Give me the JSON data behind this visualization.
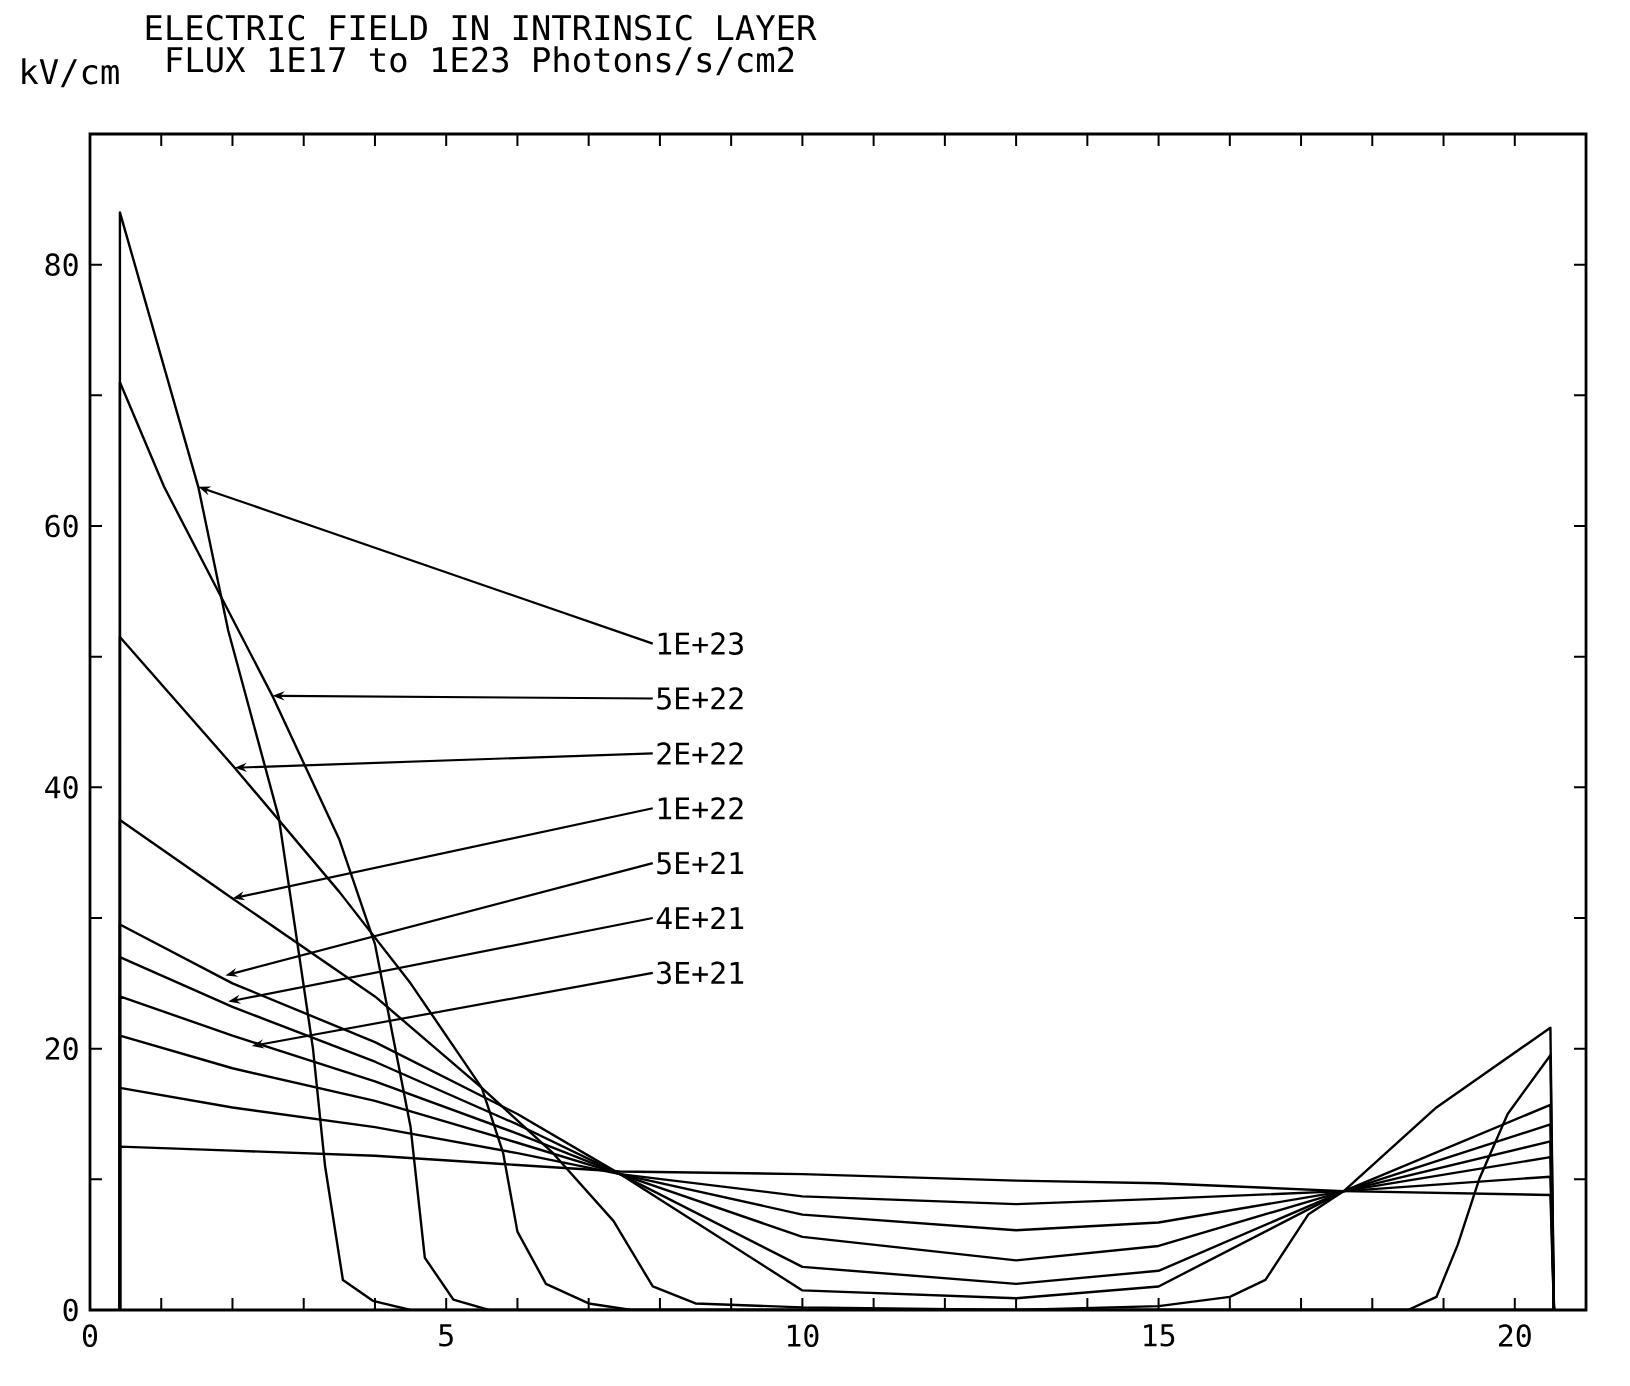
{
  "chart_data": {
    "type": "line",
    "title": "ELECTRIC FIELD IN INTRINSIC LAYER",
    "subtitle": "FLUX    1E17 to 1E23 Photons/s/cm2",
    "ylabel": "kV/cm",
    "xlim": [
      0,
      21
    ],
    "ylim": [
      0,
      90
    ],
    "xticks": [
      0,
      {
        "value": 1,
        "label": null
      },
      {
        "value": 2,
        "label": null
      },
      {
        "value": 3,
        "label": null
      },
      {
        "value": 4,
        "label": null
      },
      5,
      {
        "value": 6,
        "label": null
      },
      {
        "value": 7,
        "label": null
      },
      {
        "value": 8,
        "label": null
      },
      {
        "value": 9,
        "label": null
      },
      10,
      {
        "value": 11,
        "label": null
      },
      {
        "value": 12,
        "label": null
      },
      {
        "value": 13,
        "label": null
      },
      {
        "value": 14,
        "label": null
      },
      15,
      {
        "value": 16,
        "label": null
      },
      {
        "value": 17,
        "label": null
      },
      {
        "value": 18,
        "label": null
      },
      {
        "value": 19,
        "label": null
      },
      20,
      {
        "value": 21,
        "label": null
      }
    ],
    "yticks": [
      0,
      {
        "value": 10,
        "label": null
      },
      20,
      {
        "value": 30,
        "label": null
      },
      40,
      {
        "value": 50,
        "label": null
      },
      60,
      {
        "value": 70,
        "label": null
      },
      80,
      {
        "value": 90,
        "label": null
      }
    ],
    "series": [
      {
        "color": "#000000",
        "x": [
          0.42,
          0.42,
          1.52,
          1.94,
          2.65,
          3.13,
          3.3,
          3.55,
          3.97,
          4.5,
          20.3,
          20.55
        ],
        "values": [
          0,
          84,
          63,
          52,
          37.7,
          20,
          11,
          2.3,
          0.7,
          0,
          0,
          0
        ]
      },
      {
        "color": "#000000",
        "x": [
          0.42,
          0.42,
          1.04,
          2.56,
          3.5,
          4.0,
          4.5,
          4.7,
          5.1,
          5.6,
          20.3,
          20.55
        ],
        "values": [
          0,
          71,
          63,
          47,
          36,
          28,
          14,
          4,
          0.8,
          0,
          0,
          0
        ]
      },
      {
        "color": "#000000",
        "x": [
          0.42,
          0.42,
          2.03,
          3.5,
          4.5,
          5.5,
          5.8,
          6.0,
          6.4,
          7.0,
          7.6,
          18.5,
          18.9,
          19.2,
          19.5,
          19.9,
          20.5,
          20.55
        ],
        "values": [
          0,
          51.5,
          41.5,
          32,
          25,
          17,
          12,
          6,
          2,
          0.5,
          0,
          0,
          1,
          5,
          10,
          15,
          19.5,
          0
        ]
      },
      {
        "color": "#000000",
        "x": [
          0.42,
          0.42,
          2.0,
          4.0,
          5.5,
          6.5,
          7.35,
          7.9,
          8.5,
          10,
          13,
          15,
          16,
          16.5,
          17.1,
          17.6,
          18.9,
          20.5,
          20.55
        ],
        "values": [
          0,
          37.5,
          31.5,
          24,
          17,
          12,
          6.8,
          1.8,
          0.5,
          0.2,
          0,
          0.3,
          1,
          2.3,
          7.3,
          9.1,
          15.5,
          21.6,
          0
        ]
      },
      {
        "color": "#000000",
        "x": [
          0.42,
          0.42,
          2,
          4,
          6,
          7.44,
          10,
          13,
          15,
          17.6,
          20.5,
          20.55
        ],
        "values": [
          0,
          29.5,
          25,
          20.5,
          15,
          10.4,
          1.5,
          0.9,
          1.8,
          9.1,
          15.7,
          0
        ]
      },
      {
        "color": "#000000",
        "x": [
          0.42,
          0.42,
          2,
          4,
          6,
          7.44,
          10,
          13,
          15,
          17.6,
          20.5,
          20.55
        ],
        "values": [
          0,
          27,
          23.2,
          19,
          14.2,
          10.4,
          3.3,
          2.0,
          3.0,
          9.1,
          14.2,
          0
        ]
      },
      {
        "color": "#000000",
        "x": [
          0.42,
          0.42,
          2,
          4,
          6,
          7.44,
          10,
          13,
          15,
          17.6,
          20.5,
          20.55
        ],
        "values": [
          0,
          24,
          21,
          17.5,
          13.5,
          10.4,
          5.6,
          3.8,
          4.9,
          9.1,
          12.9,
          0
        ]
      },
      {
        "color": "#000000",
        "x": [
          0.42,
          0.42,
          2,
          4,
          6,
          7.44,
          10,
          13,
          15,
          17.6,
          20.5,
          20.55
        ],
        "values": [
          0,
          21,
          18.5,
          16,
          12.8,
          10.4,
          7.3,
          6.1,
          6.7,
          9.1,
          11.7,
          0
        ]
      },
      {
        "color": "#000000",
        "x": [
          0.42,
          0.42,
          2,
          4,
          6,
          7.44,
          10,
          13,
          15,
          17.6,
          20.5,
          20.55
        ],
        "values": [
          0,
          17,
          15.5,
          14,
          12,
          10.4,
          8.7,
          8.1,
          8.5,
          9.1,
          10.2,
          0
        ]
      },
      {
        "color": "#000000",
        "x": [
          0.42,
          0.42,
          2,
          4,
          6,
          7.44,
          10,
          13,
          15,
          17.6,
          20.5,
          20.55
        ],
        "values": [
          0,
          12.5,
          12.2,
          11.8,
          11.1,
          10.6,
          10.4,
          9.9,
          9.7,
          9.1,
          8.8,
          0
        ]
      }
    ],
    "annotations": [
      {
        "text": "1E+23",
        "x": 1.52,
        "y": 63
      },
      {
        "text": "5E+22",
        "x": 2.56,
        "y": 47
      },
      {
        "text": "2E+22",
        "x": 2.03,
        "y": 41.5
      },
      {
        "text": "1E+22",
        "x": 2.0,
        "y": 31.5
      },
      {
        "text": "5E+21",
        "x": 1.9,
        "y": 25.6
      },
      {
        "text": "4E+21",
        "x": 1.94,
        "y": 23.6
      },
      {
        "text": "3E+21",
        "x": 2.27,
        "y": 20.2
      }
    ]
  }
}
